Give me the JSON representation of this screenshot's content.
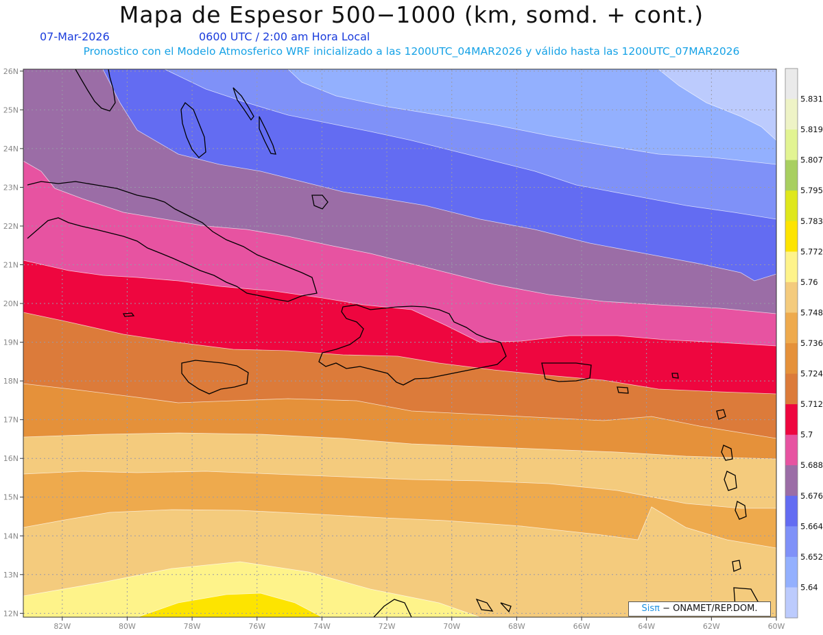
{
  "header": {
    "title": "Mapa de Espesor 500−1000 (km, somd. + cont.)",
    "date": "07-Mar-2026",
    "time": "0600 UTC / 2:00 am Hora Local",
    "subtitle": "Pronostico con el Modelo Atmosferico WRF inicializado a las 1200UTC_04MAR2026 y válido hasta las  1200UTC_07MAR2026"
  },
  "credit": {
    "logo": "Sisπ",
    "text": " − ONAMET/REP.DOM."
  },
  "map_data": {
    "type": "contour-fill",
    "lon_ticks": [
      "82W",
      "80W",
      "78W",
      "76W",
      "74W",
      "72W",
      "70W",
      "68W",
      "66W",
      "64W",
      "62W",
      "60W"
    ],
    "lat_ticks": [
      "26N",
      "25N",
      "24N",
      "23N",
      "22N",
      "21N",
      "20N",
      "19N",
      "18N",
      "17N",
      "16N",
      "15N",
      "14N",
      "13N",
      "12N"
    ],
    "lon_range": [
      -83.2,
      -60
    ],
    "lat_range": [
      11.9,
      26.05
    ]
  },
  "colorbar": {
    "labels": [
      "5.831",
      "5.819",
      "5.807",
      "5.795",
      "5.783",
      "5.772",
      "5.76",
      "5.748",
      "5.736",
      "5.724",
      "5.712",
      "5.7",
      "5.688",
      "5.676",
      "5.664",
      "5.652",
      "5.64"
    ],
    "colors": [
      "#eaeaea",
      "#eef3c6",
      "#e2f492",
      "#a8cf60",
      "#dfe71c",
      "#fde400",
      "#fef38a",
      "#f4cb7d",
      "#eeaa4d",
      "#e5913a",
      "#dc7b3a",
      "#ee063f",
      "#e753a1",
      "#9b6da6",
      "#636cf2",
      "#7f91f8",
      "#93b0fe",
      "#bccbfd"
    ]
  }
}
